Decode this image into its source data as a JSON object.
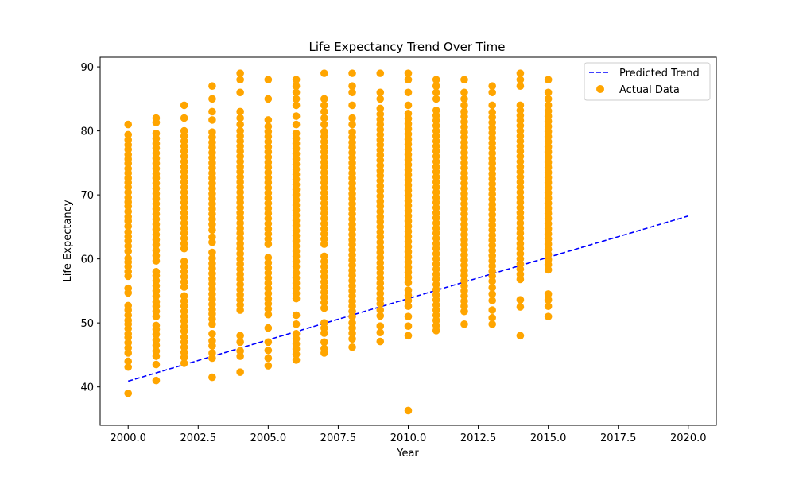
{
  "chart_data": {
    "type": "scatter",
    "title": "Life Expectancy Trend Over Time",
    "xlabel": "Year",
    "ylabel": "Life Expectancy",
    "xlim": [
      1999.0,
      2021.0
    ],
    "ylim": [
      34,
      91.5
    ],
    "xticks": [
      2000,
      2002.5,
      2005,
      2007.5,
      2010,
      2012.5,
      2015,
      2017.5,
      2020
    ],
    "xtick_labels": [
      "2000.0",
      "2002.5",
      "2005.0",
      "2007.5",
      "2010.0",
      "2012.5",
      "2015.0",
      "2017.5",
      "2020.0"
    ],
    "yticks": [
      40,
      50,
      60,
      70,
      80,
      90
    ],
    "ytick_labels": [
      "40",
      "50",
      "60",
      "70",
      "80",
      "90"
    ],
    "grid": false,
    "legend_position": "top-right",
    "series": [
      {
        "name": "Predicted Trend",
        "kind": "line",
        "style": "dashed",
        "color": "#0000ff",
        "x": [
          2000,
          2020
        ],
        "y": [
          40.9,
          66.7
        ]
      },
      {
        "name": "Actual Data",
        "kind": "scatter",
        "color": "#ffa500",
        "points_by_year": {
          "2000": [
            39.0,
            43.1,
            44.0,
            45.3,
            46.1,
            46.9,
            47.7,
            48.3,
            49.1,
            49.8,
            50.4,
            51.2,
            52.0,
            52.7,
            54.7,
            55.4,
            57.3,
            58.0,
            58.8,
            59.5,
            60.1,
            61.2,
            62.0,
            62.8,
            63.5,
            64.2,
            65.1,
            65.9,
            66.6,
            67.4,
            68.2,
            68.9,
            69.6,
            70.4,
            71.2,
            71.9,
            72.6,
            73.4,
            74.1,
            74.9,
            75.6,
            76.3,
            77.1,
            77.8,
            78.6,
            79.4,
            81.0
          ],
          "2001": [
            41.0,
            43.5,
            44.8,
            45.6,
            46.5,
            47.3,
            48.2,
            49.0,
            49.6,
            51.0,
            51.8,
            52.6,
            53.3,
            54.2,
            55.0,
            55.8,
            56.6,
            57.4,
            58.0,
            59.7,
            60.5,
            61.3,
            62.2,
            63.0,
            63.8,
            64.6,
            65.4,
            66.2,
            67.0,
            67.8,
            68.6,
            69.4,
            70.2,
            71.0,
            71.8,
            72.6,
            73.3,
            74.1,
            74.9,
            75.7,
            76.5,
            77.3,
            78.0,
            78.8,
            79.6,
            81.3,
            82.0
          ],
          "2002": [
            43.7,
            44.6,
            45.4,
            46.2,
            47.0,
            47.8,
            48.7,
            49.4,
            50.3,
            51.0,
            51.8,
            52.6,
            53.4,
            54.2,
            55.6,
            56.4,
            57.2,
            58.0,
            58.8,
            59.6,
            61.6,
            62.4,
            63.2,
            64.0,
            64.8,
            65.6,
            66.4,
            67.2,
            68.0,
            68.8,
            69.6,
            70.4,
            71.2,
            72.0,
            72.8,
            73.6,
            74.4,
            75.2,
            76.0,
            76.8,
            77.6,
            78.4,
            79.2,
            80.0,
            82.0,
            84.0
          ],
          "2003": [
            41.5,
            44.5,
            45.3,
            46.4,
            47.2,
            48.3,
            49.8,
            50.6,
            51.4,
            52.1,
            52.9,
            53.7,
            54.5,
            55.3,
            56.1,
            56.9,
            57.7,
            58.5,
            59.3,
            60.1,
            61.0,
            62.6,
            63.4,
            64.5,
            65.4,
            66.2,
            67.0,
            67.8,
            68.6,
            69.4,
            70.2,
            71.0,
            71.8,
            72.6,
            73.4,
            74.2,
            75.0,
            75.8,
            76.6,
            77.4,
            78.2,
            79.0,
            79.8,
            81.7,
            83.0,
            85.0,
            87.0
          ],
          "2004": [
            42.3,
            44.8,
            45.6,
            47.0,
            48.0,
            52.0,
            52.8,
            53.6,
            54.4,
            55.2,
            56.0,
            56.8,
            57.6,
            58.4,
            59.2,
            60.0,
            60.8,
            61.6,
            62.4,
            63.2,
            64.0,
            64.8,
            65.6,
            66.4,
            67.2,
            68.0,
            68.8,
            69.6,
            70.4,
            71.2,
            72.0,
            72.8,
            73.6,
            74.4,
            75.2,
            76.0,
            76.8,
            77.6,
            78.4,
            79.2,
            80.0,
            81.0,
            82.0,
            83.0,
            86.0,
            88.0,
            89.0
          ],
          "2005": [
            43.3,
            44.5,
            45.7,
            47.0,
            49.2,
            51.3,
            52.2,
            53.0,
            53.8,
            54.6,
            55.4,
            56.2,
            57.0,
            57.8,
            58.6,
            59.4,
            60.2,
            62.3,
            63.1,
            63.9,
            64.7,
            65.5,
            66.3,
            67.1,
            67.9,
            68.7,
            69.5,
            70.3,
            71.1,
            71.9,
            72.7,
            73.5,
            74.3,
            75.1,
            75.9,
            76.7,
            77.5,
            78.3,
            79.1,
            79.9,
            80.7,
            81.7,
            85.0,
            88.0
          ],
          "2006": [
            44.2,
            45.1,
            45.9,
            46.7,
            47.5,
            48.3,
            49.8,
            51.2,
            53.8,
            54.6,
            55.4,
            56.2,
            57.0,
            57.8,
            58.8,
            59.6,
            60.4,
            61.2,
            62.0,
            62.8,
            63.6,
            64.4,
            65.2,
            66.0,
            66.8,
            67.6,
            68.4,
            69.2,
            70.0,
            70.8,
            71.6,
            72.4,
            73.2,
            74.0,
            74.8,
            75.6,
            76.4,
            77.2,
            78.0,
            78.8,
            79.6,
            81.0,
            82.3,
            84.0,
            85.0,
            86.0,
            87.0,
            88.0
          ],
          "2007": [
            45.3,
            46.0,
            47.0,
            48.4,
            49.2,
            50.0,
            52.3,
            53.2,
            54.0,
            54.8,
            55.6,
            56.4,
            57.2,
            58.0,
            58.8,
            59.6,
            60.4,
            62.3,
            63.1,
            63.9,
            64.7,
            65.5,
            66.3,
            67.1,
            67.9,
            68.7,
            69.5,
            70.3,
            71.1,
            71.9,
            72.7,
            73.5,
            74.3,
            75.1,
            75.9,
            76.7,
            77.5,
            78.3,
            79.1,
            79.9,
            81.0,
            82.0,
            83.0,
            84.0,
            85.0,
            89.0
          ],
          "2008": [
            46.2,
            47.5,
            48.4,
            49.2,
            50.0,
            51.0,
            51.8,
            52.6,
            53.4,
            54.2,
            55.0,
            55.8,
            56.6,
            57.4,
            58.2,
            59.0,
            59.8,
            60.6,
            61.4,
            62.2,
            63.0,
            63.8,
            64.6,
            65.4,
            66.2,
            67.0,
            67.8,
            68.6,
            69.4,
            70.2,
            71.0,
            71.8,
            72.6,
            73.4,
            74.2,
            75.0,
            75.8,
            76.6,
            77.4,
            78.2,
            79.0,
            79.8,
            81.0,
            82.0,
            84.0,
            86.0,
            87.0,
            89.0
          ],
          "2009": [
            47.1,
            48.5,
            49.5,
            51.1,
            52.0,
            53.0,
            53.8,
            54.6,
            55.4,
            56.2,
            57.0,
            57.8,
            58.6,
            59.4,
            60.2,
            61.0,
            61.8,
            62.6,
            63.4,
            64.2,
            65.0,
            65.8,
            66.6,
            67.4,
            68.2,
            69.0,
            69.8,
            70.6,
            71.4,
            72.2,
            73.0,
            73.8,
            74.6,
            75.4,
            76.2,
            77.0,
            77.8,
            78.6,
            79.4,
            80.2,
            81.0,
            81.8,
            82.6,
            83.5,
            85.0,
            86.0,
            89.0
          ],
          "2010": [
            36.3,
            48.0,
            49.5,
            51.0,
            52.6,
            53.5,
            54.3,
            55.1,
            56.3,
            57.1,
            57.9,
            58.7,
            59.5,
            60.3,
            61.1,
            61.9,
            62.7,
            63.5,
            64.3,
            65.1,
            65.9,
            66.7,
            67.5,
            68.3,
            69.1,
            69.9,
            70.7,
            71.5,
            72.3,
            73.1,
            73.9,
            74.7,
            75.5,
            76.3,
            77.1,
            77.9,
            78.7,
            79.5,
            80.3,
            81.1,
            81.9,
            82.7,
            84.0,
            86.0,
            88.0,
            89.0
          ],
          "2011": [
            48.8,
            49.6,
            50.4,
            51.2,
            52.0,
            52.8,
            53.6,
            54.4,
            55.2,
            56.0,
            56.8,
            57.6,
            58.4,
            59.2,
            60.0,
            60.8,
            61.6,
            62.4,
            63.2,
            64.0,
            64.8,
            65.6,
            66.4,
            67.2,
            68.0,
            68.8,
            69.6,
            70.4,
            71.2,
            72.0,
            72.8,
            73.6,
            74.4,
            75.2,
            76.0,
            76.8,
            77.6,
            78.4,
            79.2,
            80.0,
            80.8,
            81.6,
            82.4,
            83.2,
            85.0,
            86.0,
            87.0,
            88.0
          ],
          "2012": [
            49.8,
            51.8,
            52.6,
            53.4,
            54.2,
            55.0,
            55.8,
            56.6,
            57.4,
            58.2,
            59.0,
            59.8,
            60.6,
            61.4,
            62.2,
            63.0,
            63.8,
            64.6,
            65.4,
            66.2,
            67.0,
            67.8,
            68.6,
            69.4,
            70.2,
            71.0,
            71.8,
            72.6,
            73.4,
            74.2,
            75.0,
            75.8,
            76.6,
            77.4,
            78.2,
            79.0,
            79.8,
            80.6,
            81.4,
            82.2,
            83.0,
            84.0,
            85.0,
            86.0,
            88.0
          ],
          "2013": [
            49.8,
            50.8,
            52.0,
            53.5,
            54.5,
            55.5,
            56.5,
            57.3,
            58.1,
            58.9,
            59.7,
            60.5,
            61.3,
            62.1,
            62.9,
            63.7,
            64.5,
            65.3,
            66.1,
            66.9,
            67.7,
            68.5,
            69.3,
            70.1,
            70.9,
            71.7,
            72.5,
            73.3,
            74.1,
            74.9,
            75.7,
            76.5,
            77.3,
            78.1,
            78.9,
            79.7,
            80.5,
            81.3,
            82.1,
            82.9,
            84.0,
            86.0,
            87.0
          ],
          "2014": [
            48.0,
            52.5,
            53.6,
            56.8,
            57.6,
            58.4,
            59.2,
            60.0,
            60.8,
            61.6,
            62.4,
            63.2,
            64.0,
            64.8,
            65.6,
            66.4,
            67.2,
            68.0,
            68.8,
            69.6,
            70.4,
            71.2,
            72.0,
            72.8,
            73.6,
            74.4,
            75.2,
            76.0,
            76.8,
            77.6,
            78.4,
            79.2,
            80.0,
            80.8,
            81.6,
            82.4,
            83.2,
            84.0,
            87.0,
            88.0,
            89.0
          ],
          "2015": [
            51.0,
            52.6,
            53.6,
            54.5,
            58.3,
            59.1,
            59.9,
            60.7,
            61.5,
            62.3,
            63.1,
            63.9,
            64.7,
            65.5,
            66.3,
            67.1,
            67.9,
            68.7,
            69.5,
            70.3,
            71.1,
            71.9,
            72.7,
            73.5,
            74.3,
            75.1,
            75.9,
            76.7,
            77.5,
            78.3,
            79.1,
            79.9,
            80.7,
            81.5,
            82.3,
            83.1,
            84.0,
            85.0,
            86.0,
            88.0
          ]
        }
      }
    ]
  }
}
